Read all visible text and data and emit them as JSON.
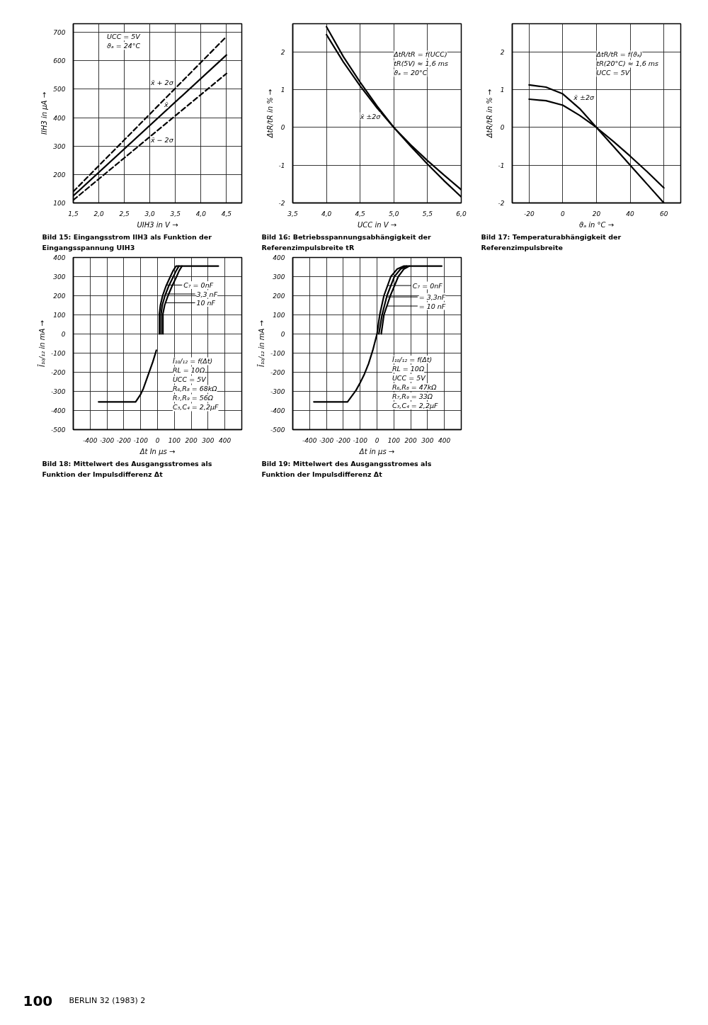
{
  "chart_data": [
    {
      "type": "line",
      "title": "Bild 15: Eingangsstrom IIH3 als Funktion der Eingangsspannung UIH3",
      "xlabel": "UIH3 in V →",
      "ylabel": "IIH3 in µA →",
      "annotations": [
        "UCC = 5V",
        "ϑₐ = 24°C"
      ],
      "xlim": [
        1.5,
        4.8
      ],
      "ylim": [
        100,
        730
      ],
      "xticks": [
        {
          "value": 1.5,
          "label": "1,5"
        },
        {
          "value": 2.0,
          "label": "2,0"
        },
        {
          "value": 2.5,
          "label": "2,5"
        },
        {
          "value": 3.0,
          "label": "3,0"
        },
        {
          "value": 3.5,
          "label": "3,5"
        },
        {
          "value": 4.0,
          "label": "4,0"
        },
        {
          "value": 4.5,
          "label": "4,5"
        }
      ],
      "yticks": [
        100,
        200,
        300,
        400,
        500,
        600,
        700
      ],
      "grid": true,
      "series": [
        {
          "name": "x̄ + 2σ",
          "color": "#000000",
          "line_style": "dashed",
          "x": [
            1.5,
            4.5
          ],
          "values": [
            140,
            685
          ]
        },
        {
          "name": "x̄",
          "color": "#000000",
          "line_style": "solid",
          "x": [
            1.5,
            4.5
          ],
          "values": [
            125,
            620
          ]
        },
        {
          "name": "x̄ − 2σ",
          "color": "#000000",
          "line_style": "dashed",
          "x": [
            1.5,
            4.5
          ],
          "values": [
            110,
            555
          ]
        }
      ]
    },
    {
      "type": "line",
      "title": "Bild 16: Betriebsspannungsabhängigkeit der Referenzimpulsbreite tR",
      "xlabel": "UCC in V →",
      "ylabel": "ΔtR/tR in % →",
      "annotations": [
        "ΔtR/tR = f(UCC)",
        "tR(5V) ≈ 1,6 ms",
        "ϑₐ = 20°C",
        "x̄ ±2σ"
      ],
      "xlim": [
        3.5,
        6.0
      ],
      "ylim": [
        -2,
        2.75
      ],
      "xticks": [
        {
          "value": 3.5,
          "label": "3,5"
        },
        {
          "value": 4.0,
          "label": "4,0"
        },
        {
          "value": 4.5,
          "label": "4,5"
        },
        {
          "value": 5.0,
          "label": "5,0"
        },
        {
          "value": 5.5,
          "label": "5,5"
        },
        {
          "value": 6.0,
          "label": "6,0"
        }
      ],
      "yticks": [
        -2,
        -1,
        0,
        1,
        2
      ],
      "grid": true,
      "series": [
        {
          "color": "#000000",
          "x": [
            4.0,
            4.25,
            4.5,
            4.75,
            5.0,
            5.25,
            5.5,
            5.75,
            6.0
          ],
          "values": [
            2.67,
            1.88,
            1.2,
            0.57,
            0,
            -0.5,
            -0.97,
            -1.42,
            -1.84
          ]
        },
        {
          "color": "#000000",
          "x": [
            4.0,
            4.25,
            4.5,
            4.75,
            5.0,
            5.25,
            5.5,
            5.75,
            6.0
          ],
          "values": [
            2.46,
            1.74,
            1.1,
            0.52,
            0,
            -0.46,
            -0.88,
            -1.27,
            -1.65
          ]
        }
      ]
    },
    {
      "type": "line",
      "title": "Bild 17: Temperaturabhängigkeit der Referenzimpulsbreite",
      "xlabel": "ϑₐ in °C →",
      "ylabel": "ΔtR/tR in % →",
      "annotations": [
        "ΔtR/tR = f(ϑₐ)",
        "tR(20°C) ≈ 1,6 ms",
        "UCC = 5V",
        "x̄ ±2σ"
      ],
      "xlim": [
        -30,
        70
      ],
      "ylim": [
        -2,
        2.75
      ],
      "xticks": [
        -20,
        0,
        20,
        40,
        60
      ],
      "yticks": [
        -2,
        -1,
        0,
        1,
        2
      ],
      "grid": true,
      "series": [
        {
          "color": "#000000",
          "x": [
            -20,
            -10,
            0,
            10,
            20,
            30,
            40,
            50,
            60
          ],
          "values": [
            1.13,
            1.07,
            0.89,
            0.5,
            0,
            -0.5,
            -1.0,
            -1.5,
            -2.0
          ]
        },
        {
          "color": "#000000",
          "x": [
            -20,
            -10,
            0,
            10,
            20,
            30,
            40,
            50,
            60
          ],
          "values": [
            0.75,
            0.71,
            0.59,
            0.32,
            0,
            -0.37,
            -0.76,
            -1.17,
            -1.6
          ]
        }
      ]
    },
    {
      "type": "line",
      "title": "Bild 18: Mittelwert des Ausgangsstromes als Funktion der Impulsdifferenz Δt",
      "xlabel": "Δt In µs →",
      "ylabel": "Ī₁₀/₁₂ in mA →",
      "annotations": [
        "Ī₁₀/₁₂ = f(Δt)",
        "RL = 10Ω",
        "UCC = 5V",
        "R₆,R₈ = 68kΩ",
        "R₇,R₉ = 56Ω",
        "C₃,C₄ = 2,2µF"
      ],
      "xlim": [
        -500,
        500
      ],
      "ylim": [
        -500,
        400
      ],
      "xticks": [
        -400,
        -300,
        -200,
        -100,
        0,
        100,
        200,
        300,
        400
      ],
      "yticks": [
        -500,
        -400,
        -300,
        -200,
        -100,
        0,
        100,
        200,
        300,
        400
      ],
      "grid": true,
      "legend": "top right",
      "series": [
        {
          "name": "C₇ = 0nF",
          "color": "#000000",
          "x": [
            11,
            11,
            17,
            30,
            50,
            76,
            92,
            110,
            361
          ],
          "values": [
            0,
            105,
            150,
            200,
            250,
            300,
            330,
            355,
            355
          ]
        },
        {
          "name": "3,3 nF",
          "color": "#000000",
          "x": [
            21,
            21,
            28,
            44,
            66,
            94,
            110,
            127
          ],
          "values": [
            0,
            105,
            150,
            200,
            250,
            300,
            330,
            355
          ]
        },
        {
          "name": "10 nF",
          "color": "#000000",
          "x": [
            32,
            32,
            42,
            62,
            86,
            113,
            128,
            145
          ],
          "values": [
            0,
            105,
            150,
            200,
            250,
            300,
            330,
            355
          ]
        },
        {
          "color": "#000000",
          "x": [
            -350,
            -130,
            -100,
            -84,
            -56,
            -28,
            -7
          ],
          "values": [
            -355,
            -355,
            -315,
            -285,
            -215,
            -146,
            -85
          ]
        }
      ]
    },
    {
      "type": "line",
      "title": "Bild 19: Mittelwert des Ausgangsstromes als Funktion der Impulsdifferenz Δt",
      "xlabel": "Δt in µs →",
      "ylabel": "Ī₁₀/₁₂ in mA →",
      "annotations": [
        "Ī₁₀/₁₂ = f(Δt)",
        "RL = 10Ω",
        "UCC = 5V",
        "R₆,R₈ = 47kΩ",
        "R₇,R₉ = 33Ω",
        "C₃,C₄ = 2,2µF"
      ],
      "xlim": [
        -500,
        500
      ],
      "ylim": [
        -500,
        400
      ],
      "xticks": [
        -400,
        -300,
        -200,
        -100,
        0,
        100,
        200,
        300,
        400
      ],
      "yticks": [
        -500,
        -400,
        -300,
        -200,
        -100,
        0,
        100,
        200,
        300,
        400
      ],
      "grid": true,
      "legend": "top right",
      "series": [
        {
          "name": "C₇ = 0nF",
          "color": "#000000",
          "x": [
            -375,
            -175,
            -125,
            -100,
            -75,
            -50,
            -25,
            0,
            16,
            41,
            82,
            120,
            158,
            384
          ],
          "values": [
            -355,
            -355,
            -295,
            -255,
            -210,
            -155,
            -85,
            0,
            100,
            200,
            300,
            340,
            355,
            355
          ]
        },
        {
          "name": "= 3,3nF",
          "color": "#000000",
          "x": [
            11,
            30,
            59,
            103,
            140,
            175
          ],
          "values": [
            0,
            100,
            200,
            300,
            340,
            355
          ]
        },
        {
          "name": "= 10 nF",
          "color": "#000000",
          "x": [
            25,
            41,
            79,
            126,
            160,
            192
          ],
          "values": [
            0,
            100,
            200,
            300,
            340,
            355
          ]
        }
      ]
    },
    {
      "type": "other",
      "annotations": [
        "100",
        "BERLIN 32 (1983) 2"
      ]
    }
  ]
}
